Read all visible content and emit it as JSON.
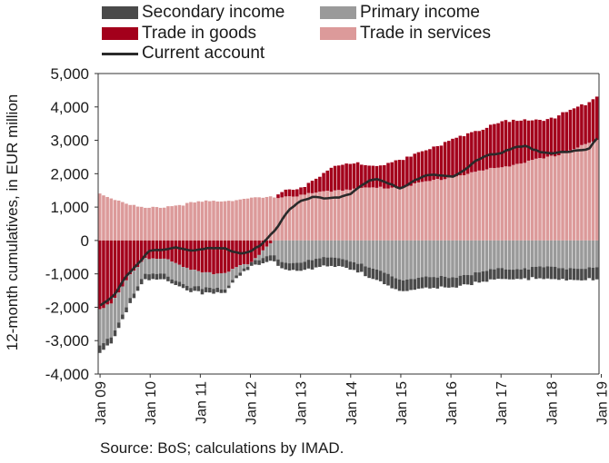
{
  "chart_data": {
    "type": "bar",
    "ylabel": "12-month cumulatives, in EUR million",
    "source": "Source: BoS; calculations by IMAD.",
    "ylim": [
      -4000,
      5000
    ],
    "yticks": [
      "5,000",
      "4,000",
      "3,000",
      "2,000",
      "1,000",
      "0",
      "-1,000",
      "-2,000",
      "-3,000",
      "-4,000"
    ],
    "x_ticks": [
      "Jan 09",
      "Jan 10",
      "Jan 11",
      "Jan 12",
      "Jan 13",
      "Jan 14",
      "Jan 15",
      "Jan 16",
      "Jan 17",
      "Jan 18",
      "Jan 19"
    ],
    "x_start": "2009-01",
    "legend": [
      {
        "key": "secondary",
        "label": "Secondary income",
        "color": "#4a4a4a",
        "kind": "bar"
      },
      {
        "key": "primary",
        "label": "Primary income",
        "color": "#9a9a9a",
        "kind": "bar"
      },
      {
        "key": "goods",
        "label": "Trade in goods",
        "color": "#a3001b",
        "kind": "bar"
      },
      {
        "key": "services",
        "label": "Trade in services",
        "color": "#dc9a9a",
        "kind": "bar"
      },
      {
        "key": "current",
        "label": "Current account",
        "color": "#2a2a2a",
        "kind": "line"
      }
    ],
    "keypoints": {
      "services": [
        [
          0,
          1400
        ],
        [
          8,
          1050
        ],
        [
          11,
          950
        ],
        [
          18,
          1050
        ],
        [
          24,
          1150
        ],
        [
          36,
          1250
        ],
        [
          42,
          1300
        ],
        [
          48,
          1350
        ],
        [
          56,
          1500
        ],
        [
          60,
          1550
        ],
        [
          72,
          1600
        ],
        [
          84,
          1900
        ],
        [
          96,
          2200
        ],
        [
          108,
          2500
        ],
        [
          119,
          3000
        ]
      ],
      "goods": [
        [
          0,
          -2000
        ],
        [
          3,
          -1900
        ],
        [
          8,
          -900
        ],
        [
          11,
          -500
        ],
        [
          15,
          -550
        ],
        [
          20,
          -800
        ],
        [
          24,
          -900
        ],
        [
          30,
          -1000
        ],
        [
          36,
          -650
        ],
        [
          40,
          -150
        ],
        [
          44,
          150
        ],
        [
          48,
          200
        ],
        [
          56,
          700
        ],
        [
          60,
          750
        ],
        [
          66,
          650
        ],
        [
          72,
          800
        ],
        [
          84,
          1100
        ],
        [
          96,
          1350
        ],
        [
          108,
          1150
        ],
        [
          116,
          1200
        ],
        [
          119,
          1350
        ]
      ],
      "primary": [
        [
          0,
          -1100
        ],
        [
          3,
          -1000
        ],
        [
          8,
          -650
        ],
        [
          12,
          -450
        ],
        [
          20,
          -500
        ],
        [
          24,
          -500
        ],
        [
          30,
          -450
        ],
        [
          36,
          0
        ],
        [
          40,
          -300
        ],
        [
          44,
          -650
        ],
        [
          48,
          -650
        ],
        [
          56,
          -500
        ],
        [
          60,
          -600
        ],
        [
          66,
          -900
        ],
        [
          72,
          -1150
        ],
        [
          84,
          -1100
        ],
        [
          96,
          -850
        ],
        [
          108,
          -800
        ],
        [
          119,
          -850
        ]
      ],
      "secondary": [
        [
          0,
          -200
        ],
        [
          8,
          -150
        ],
        [
          12,
          -150
        ],
        [
          24,
          -150
        ],
        [
          30,
          -100
        ],
        [
          36,
          -100
        ],
        [
          40,
          -150
        ],
        [
          44,
          -200
        ],
        [
          48,
          -250
        ],
        [
          56,
          -250
        ],
        [
          60,
          -250
        ],
        [
          66,
          -300
        ],
        [
          72,
          -350
        ],
        [
          84,
          -300
        ],
        [
          96,
          -300
        ],
        [
          108,
          -350
        ],
        [
          119,
          -350
        ]
      ],
      "current": [
        [
          0,
          -1950
        ],
        [
          3,
          -1700
        ],
        [
          6,
          -1100
        ],
        [
          9,
          -700
        ],
        [
          12,
          -300
        ],
        [
          15,
          -300
        ],
        [
          18,
          -200
        ],
        [
          22,
          -300
        ],
        [
          26,
          -250
        ],
        [
          30,
          -250
        ],
        [
          34,
          -400
        ],
        [
          38,
          -200
        ],
        [
          42,
          300
        ],
        [
          45,
          900
        ],
        [
          48,
          1200
        ],
        [
          51,
          1300
        ],
        [
          54,
          1250
        ],
        [
          57,
          1300
        ],
        [
          60,
          1400
        ],
        [
          63,
          1700
        ],
        [
          66,
          1850
        ],
        [
          69,
          1700
        ],
        [
          72,
          1550
        ],
        [
          75,
          1800
        ],
        [
          78,
          1950
        ],
        [
          81,
          1950
        ],
        [
          84,
          1900
        ],
        [
          87,
          2100
        ],
        [
          90,
          2400
        ],
        [
          93,
          2550
        ],
        [
          96,
          2600
        ],
        [
          99,
          2800
        ],
        [
          102,
          2850
        ],
        [
          105,
          2650
        ],
        [
          108,
          2600
        ],
        [
          111,
          2650
        ],
        [
          114,
          2700
        ],
        [
          117,
          2750
        ],
        [
          119,
          3050
        ]
      ]
    }
  }
}
